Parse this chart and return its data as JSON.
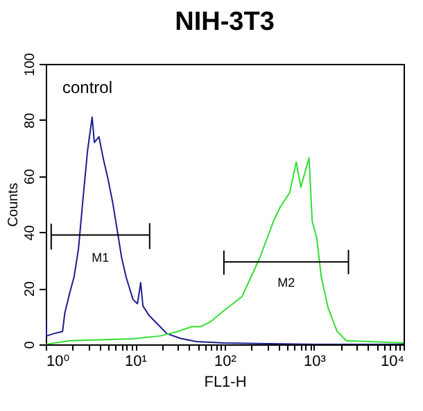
{
  "chart_data": {
    "type": "line",
    "title": "NIH-3T3",
    "xlabel": "FL1-H",
    "ylabel": "Counts",
    "log": "x",
    "grid": false,
    "marker": "none",
    "xlim": [
      1,
      10000
    ],
    "ylim": [
      0,
      100
    ],
    "xticks": [
      {
        "value": 1,
        "label": "10⁰"
      },
      {
        "value": 2,
        "label": null
      },
      {
        "value": 3,
        "label": null
      },
      {
        "value": 4,
        "label": null
      },
      {
        "value": 5,
        "label": null
      },
      {
        "value": 6,
        "label": null
      },
      {
        "value": 7,
        "label": null
      },
      {
        "value": 8,
        "label": null
      },
      {
        "value": 9,
        "label": null
      },
      {
        "value": 10,
        "label": "10¹"
      },
      {
        "value": 20,
        "label": null
      },
      {
        "value": 30,
        "label": null
      },
      {
        "value": 40,
        "label": null
      },
      {
        "value": 50,
        "label": null
      },
      {
        "value": 60,
        "label": null
      },
      {
        "value": 70,
        "label": null
      },
      {
        "value": 80,
        "label": null
      },
      {
        "value": 90,
        "label": null
      },
      {
        "value": 100,
        "label": "10²"
      },
      {
        "value": 200,
        "label": null
      },
      {
        "value": 300,
        "label": null
      },
      {
        "value": 400,
        "label": null
      },
      {
        "value": 500,
        "label": null
      },
      {
        "value": 600,
        "label": null
      },
      {
        "value": 700,
        "label": null
      },
      {
        "value": 800,
        "label": null
      },
      {
        "value": 900,
        "label": null
      },
      {
        "value": 1000,
        "label": "10³"
      },
      {
        "value": 2000,
        "label": null
      },
      {
        "value": 3000,
        "label": null
      },
      {
        "value": 4000,
        "label": null
      },
      {
        "value": 5000,
        "label": null
      },
      {
        "value": 6000,
        "label": null
      },
      {
        "value": 7000,
        "label": null
      },
      {
        "value": 8000,
        "label": null
      },
      {
        "value": 9000,
        "label": null
      },
      {
        "value": 10000,
        "label": "10⁴"
      }
    ],
    "yticks": [
      0,
      20,
      40,
      60,
      80,
      100
    ],
    "series": [
      {
        "color": "#1c1c8e",
        "x": [
          1,
          1.02,
          1.22,
          1.54,
          1.63,
          1.84,
          2.07,
          2.32,
          2.61,
          2.93,
          3.3,
          3.49,
          3.93,
          4.41,
          4.96,
          5.57,
          6.27,
          7.04,
          7.91,
          9.44,
          10.6,
          11.5,
          12.2,
          14.2,
          17.9,
          22.7,
          32.2,
          48.4,
          97.7,
          1000,
          10000
        ],
        "values": [
          9.6,
          3,
          3.8,
          4.6,
          11,
          18,
          24,
          34,
          52,
          69,
          81,
          72,
          74,
          66,
          59,
          51,
          41,
          31,
          24,
          16,
          14.5,
          22,
          13.7,
          10.4,
          7.1,
          3.8,
          2.1,
          1,
          0.5,
          0,
          0
        ]
      },
      {
        "color": "#33dd33",
        "x": [
          1,
          1.86,
          9.4,
          19,
          30,
          43,
          54,
          69,
          98,
          156,
          248,
          352,
          419,
          531,
          631,
          710,
          877,
          951,
          1069,
          1202,
          1432,
          1807,
          2291,
          10000
        ],
        "values": [
          0,
          1.3,
          2,
          3,
          4.6,
          6.3,
          6.3,
          8,
          12,
          17,
          31,
          44,
          49,
          54,
          65,
          56,
          66.5,
          44,
          38,
          24,
          13,
          4.6,
          1.3,
          0.5
        ]
      },
      {
        "type": "line",
        "color": "#000000",
        "x": [
          1.15,
          1.15,
          1.15,
          14.5,
          14.5,
          14.5
        ],
        "values": [
          43,
          34,
          39,
          39,
          43,
          34
        ]
      },
      {
        "type": "line",
        "color": "#000000",
        "x": [
          98,
          98,
          98,
          2420,
          2420,
          2420
        ],
        "values": [
          33.5,
          25,
          29.4,
          29.4,
          33.5,
          25
        ]
      }
    ],
    "annotations": [
      "control",
      "M1",
      "M2"
    ]
  }
}
